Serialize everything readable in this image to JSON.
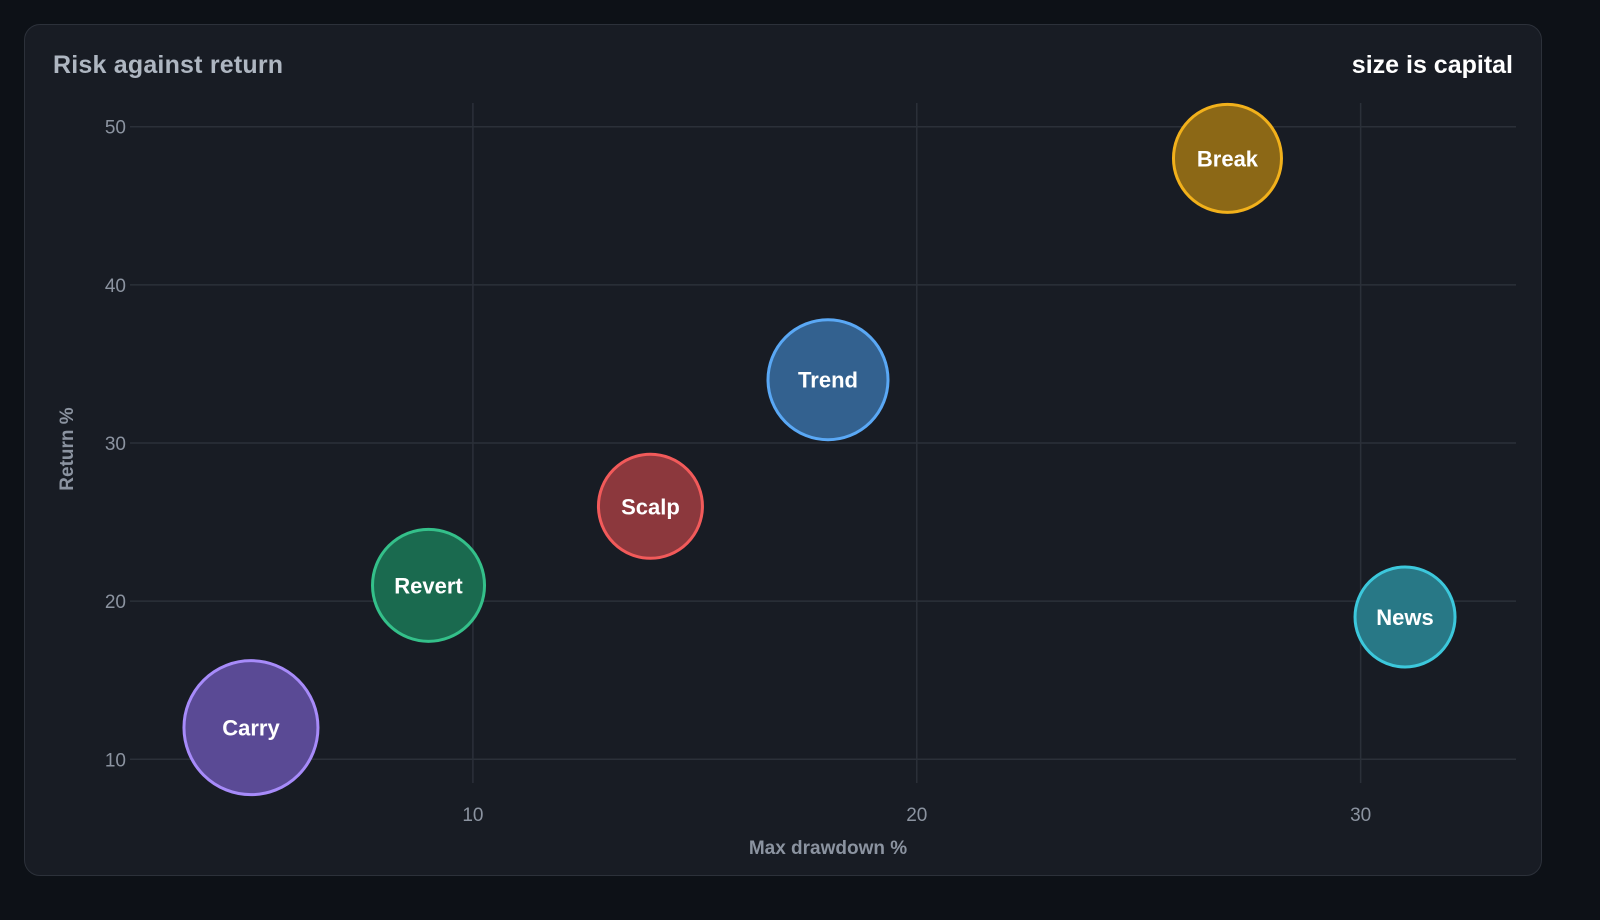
{
  "card": {
    "title": "Risk against return",
    "size_note": "size is capital"
  },
  "chart_data": {
    "type": "scatter",
    "variant": "bubble",
    "xlabel": "Max drawdown %",
    "ylabel": "Return %",
    "xlim": [
      2.5,
      33.5
    ],
    "ylim": [
      8.5,
      51.5
    ],
    "xticks": [
      10,
      20,
      30
    ],
    "yticks": [
      10,
      20,
      30,
      40,
      50
    ],
    "grid": true,
    "points": [
      {
        "label": "Carry",
        "x": 5,
        "y": 12,
        "size": 67,
        "color": "#a78bfa",
        "fill": "#5a4a95"
      },
      {
        "label": "Revert",
        "x": 9,
        "y": 21,
        "size": 56,
        "color": "#34c08a",
        "fill": "#1a6a4f"
      },
      {
        "label": "Scalp",
        "x": 14,
        "y": 26,
        "size": 52,
        "color": "#f25a5a",
        "fill": "#8c383d"
      },
      {
        "label": "Trend",
        "x": 18,
        "y": 34,
        "size": 60,
        "color": "#5aa8f5",
        "fill": "#33618f"
      },
      {
        "label": "Break",
        "x": 27,
        "y": 48,
        "size": 54,
        "color": "#f2b11b",
        "fill": "#8c6816"
      },
      {
        "label": "News",
        "x": 31,
        "y": 19,
        "size": 50,
        "color": "#3cc8dc",
        "fill": "#287886"
      }
    ]
  }
}
